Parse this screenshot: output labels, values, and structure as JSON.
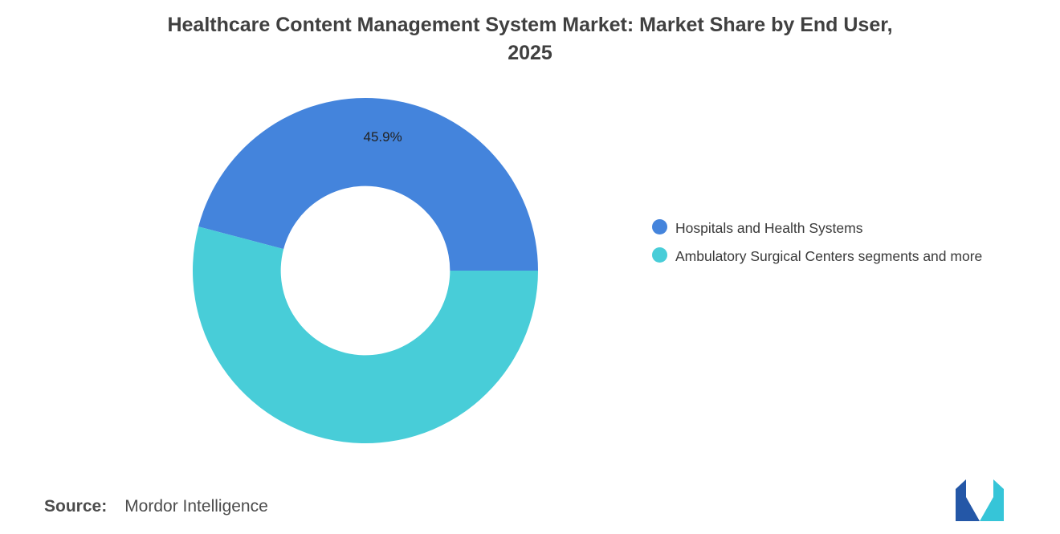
{
  "title": {
    "line1": "Healthcare Content Management System Market: Market Share by End User,",
    "line2": "2025"
  },
  "chart_data": {
    "type": "pie",
    "donut": true,
    "title": "Healthcare Content Management System Market: Market Share by End User, 2025",
    "inner_radius_ratio": 0.49,
    "start_angle_deg": -75.24,
    "legend_position": "right",
    "series": [
      {
        "name": "Hospitals and Health Systems",
        "value": 45.9,
        "label": "45.9%",
        "color": "#4484DC"
      },
      {
        "name": "Ambulatory Surgical Centers segments and more",
        "value": 54.1,
        "label": "",
        "color": "#48CDD8"
      }
    ]
  },
  "legend": {
    "items": [
      {
        "label": "Hospitals and Health Systems",
        "color": "#4484DC"
      },
      {
        "label": "Ambulatory Surgical Centers segments and more",
        "color": "#48CDD8"
      }
    ]
  },
  "source": {
    "label": "Source:",
    "value": "Mordor Intelligence"
  },
  "logo": {
    "name": "mordor-intelligence-logo",
    "left_color": "#2457A7",
    "right_color": "#36C5D8"
  }
}
